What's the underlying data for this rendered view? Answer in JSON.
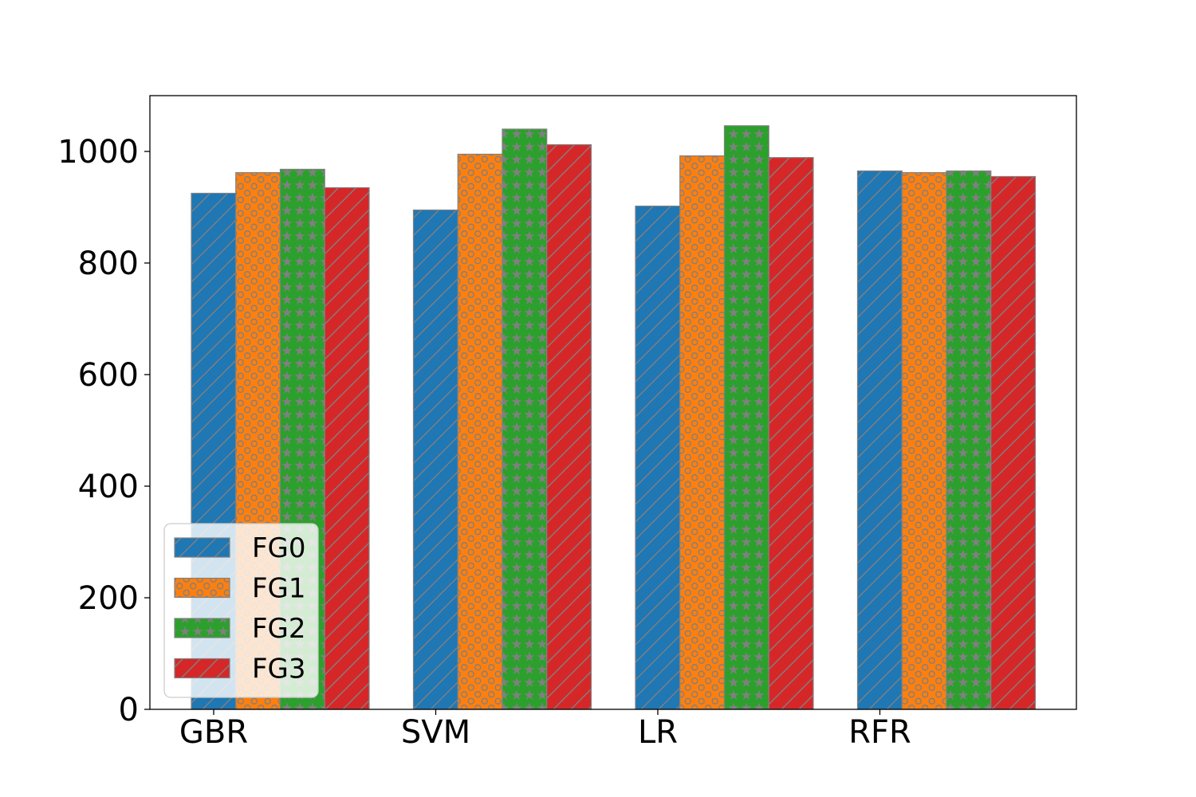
{
  "chart_data": {
    "type": "bar",
    "categories": [
      "GBR",
      "SVM",
      "LR",
      "RFR"
    ],
    "series": [
      {
        "name": "FG0",
        "values": [
          925,
          895,
          902,
          965
        ],
        "color": "#1f77b4",
        "pattern": "diagonal-hatch"
      },
      {
        "name": "FG1",
        "values": [
          962,
          995,
          992,
          962
        ],
        "color": "#ff7f0e",
        "pattern": "circles"
      },
      {
        "name": "FG2",
        "values": [
          968,
          1040,
          1046,
          965
        ],
        "color": "#2ca02c",
        "pattern": "stars"
      },
      {
        "name": "FG3",
        "values": [
          935,
          1012,
          989,
          955
        ],
        "color": "#d62728",
        "pattern": "diagonal-hatch"
      }
    ],
    "title": "",
    "xlabel": "",
    "ylabel": "",
    "ylim": [
      0,
      1100
    ],
    "yticks": [
      0,
      200,
      400,
      600,
      800,
      1000
    ],
    "grid": false,
    "legend_position": "lower-left",
    "hatch_color": "#808080"
  }
}
